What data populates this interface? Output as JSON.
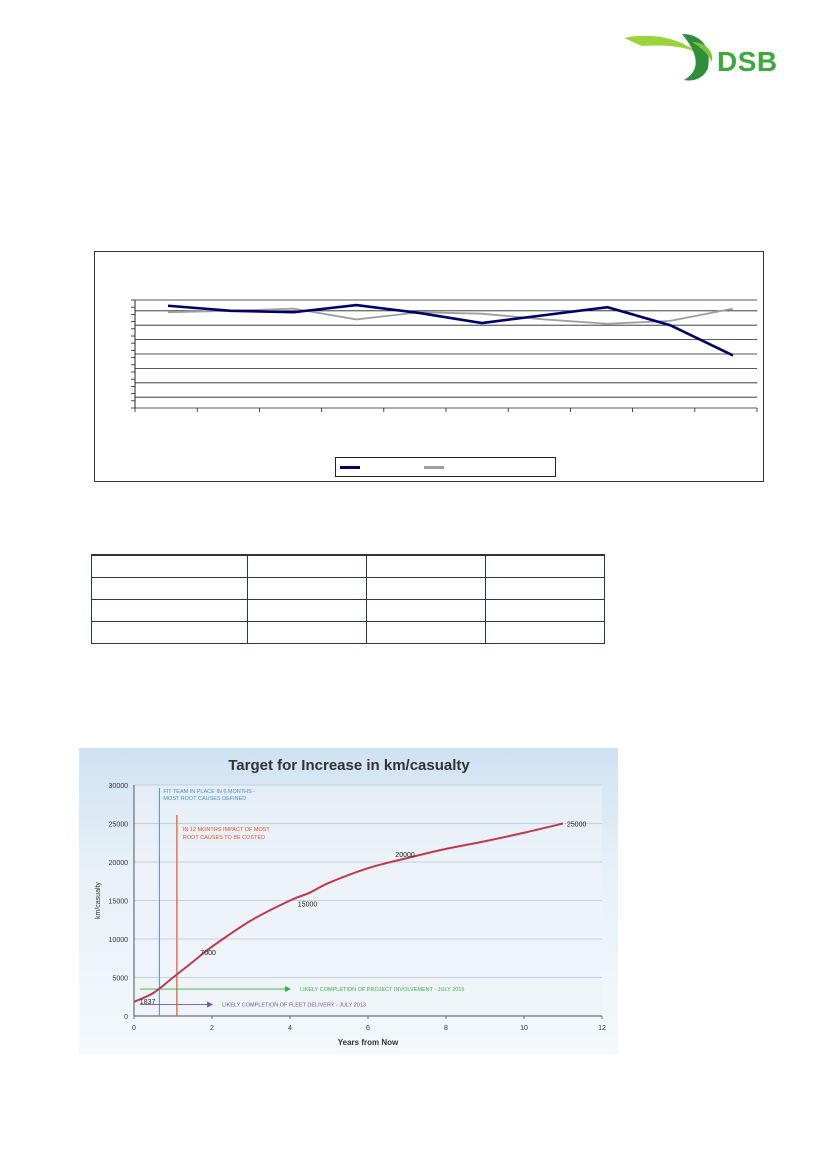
{
  "header": {
    "logo_text": "DSB",
    "logo_colors": {
      "text": "#3aab3a",
      "swoosh_light": "#9bd43a",
      "swoosh_dark": "#2d8f3a"
    }
  },
  "chart_data": [
    {
      "type": "line",
      "title": "",
      "xlabel": "",
      "ylabel": "",
      "grid": true,
      "legend_placement": "bottom",
      "x": [
        0,
        1,
        2,
        3,
        4,
        5,
        6,
        7,
        8,
        9
      ],
      "ylim": [
        0,
        15
      ],
      "series": [
        {
          "color": "#00006e",
          "values": [
            14.2,
            13.5,
            13.3,
            14.3,
            13.2,
            11.8,
            12.9,
            14.0,
            11.5,
            7.3
          ]
        },
        {
          "color": "#9e9e9e",
          "values": [
            13.3,
            13.5,
            13.8,
            12.3,
            13.3,
            13.1,
            12.3,
            11.7,
            12.1,
            13.8
          ]
        }
      ]
    },
    {
      "type": "line",
      "title": "Target for Increase in km/casualty",
      "xlabel": "Years from Now",
      "ylabel": "km/casualty",
      "xlim": [
        0,
        12
      ],
      "ylim": [
        0,
        30000
      ],
      "x_ticks": [
        "0",
        "2",
        "4",
        "6",
        "8",
        "10",
        "12"
      ],
      "y_ticks": [
        "0",
        "5000",
        "10000",
        "15000",
        "20000",
        "25000",
        "30000"
      ],
      "grid": true,
      "series": [
        {
          "color": "#c0394b",
          "x": [
            0,
            0.5,
            1,
            1.5,
            2,
            3,
            4,
            4.5,
            5,
            6,
            7,
            8,
            9,
            10,
            11
          ],
          "values": [
            1837,
            3000,
            5000,
            7000,
            9000,
            12400,
            15000,
            16000,
            17300,
            19200,
            20500,
            21700,
            22700,
            23800,
            25000
          ]
        }
      ],
      "data_labels": [
        "1837",
        "7000",
        "15000",
        "20000",
        "25000"
      ],
      "annotations": {
        "fit_team": "FIT TEAM IN PLACE IN 6 MONTHS - MOST ROOT CAUSES DEFINED",
        "impact_note": "IN 12 MONTHS IMPACT OF MOST ROOT CAUSES TO BE COSTED",
        "project_involvement": "LIKELY COMPLETION OF PROJECT INVOLVEMENT - JULY 2015",
        "fleet_delivery": "LIKELY COMPLETION OF FLEET DELIVERY - JULY 2013"
      },
      "marker_x": {
        "fit_team": 0.65,
        "impact": 1.1
      },
      "arrows_y": {
        "project_involvement": 3500,
        "fleet_delivery": 1500
      },
      "arrow_end_x": {
        "project_involvement": 3.9,
        "fleet_delivery": 1.9
      },
      "colors": {
        "fit_team": "#4a8ec8",
        "impact": "#e0562c",
        "project": "#3cb043",
        "fleet": "#7b4fa6"
      }
    }
  ]
}
